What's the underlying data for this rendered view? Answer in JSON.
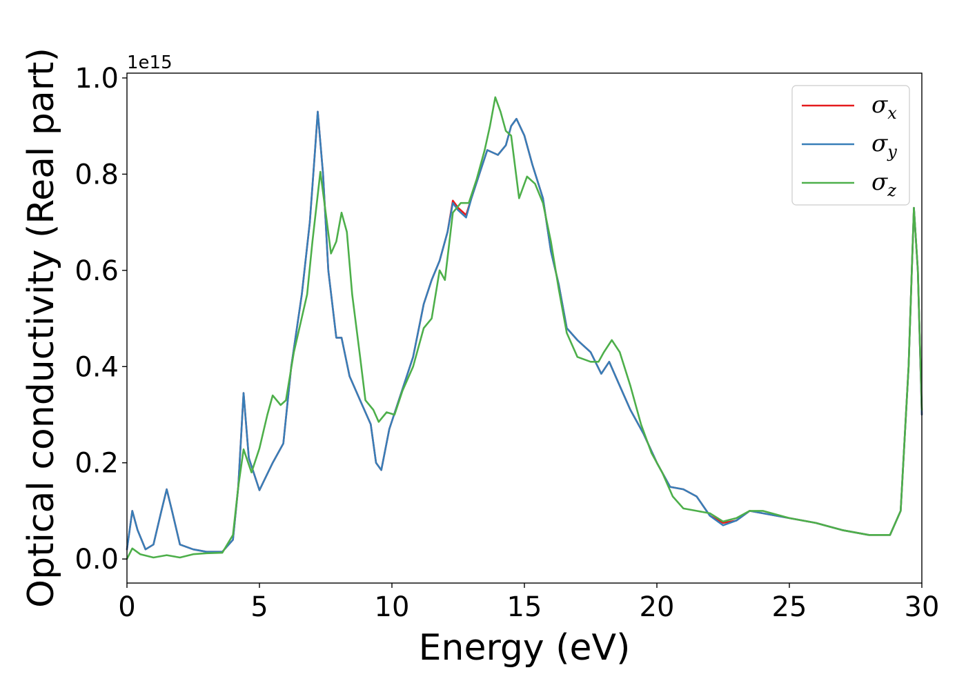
{
  "chart_data": {
    "type": "line",
    "xlabel": "Energy (eV)",
    "ylabel": "Optical conductivity (Real part)",
    "y_offset_label": "1e15",
    "xlim": [
      0,
      30
    ],
    "ylim": [
      -0.05,
      1.01
    ],
    "xticks": [
      0,
      5,
      10,
      15,
      20,
      25,
      30
    ],
    "xtick_labels": [
      "0",
      "5",
      "10",
      "15",
      "20",
      "25",
      "30"
    ],
    "yticks": [
      0.0,
      0.2,
      0.4,
      0.6,
      0.8,
      1.0
    ],
    "ytick_labels": [
      "0.0",
      "0.2",
      "0.4",
      "0.6",
      "0.8",
      "1.0"
    ],
    "grid": false,
    "legend_position": "top-right",
    "series": [
      {
        "name": "σ",
        "subscript": "x",
        "color": "#e41a1c",
        "points": [
          [
            0,
            0.02
          ],
          [
            0.2,
            0.1
          ],
          [
            0.4,
            0.06
          ],
          [
            0.7,
            0.02
          ],
          [
            1.0,
            0.03
          ],
          [
            1.3,
            0.1
          ],
          [
            1.5,
            0.145
          ],
          [
            1.7,
            0.1
          ],
          [
            2.0,
            0.03
          ],
          [
            2.5,
            0.02
          ],
          [
            3.0,
            0.015
          ],
          [
            3.6,
            0.015
          ],
          [
            4.0,
            0.04
          ],
          [
            4.2,
            0.15
          ],
          [
            4.4,
            0.345
          ],
          [
            4.6,
            0.21
          ],
          [
            5.0,
            0.143
          ],
          [
            5.5,
            0.2
          ],
          [
            5.9,
            0.24
          ],
          [
            6.2,
            0.4
          ],
          [
            6.6,
            0.55
          ],
          [
            6.9,
            0.7
          ],
          [
            7.1,
            0.85
          ],
          [
            7.2,
            0.93
          ],
          [
            7.4,
            0.8
          ],
          [
            7.6,
            0.6
          ],
          [
            7.9,
            0.46
          ],
          [
            8.1,
            0.46
          ],
          [
            8.4,
            0.38
          ],
          [
            8.8,
            0.33
          ],
          [
            9.2,
            0.28
          ],
          [
            9.4,
            0.2
          ],
          [
            9.6,
            0.185
          ],
          [
            9.9,
            0.27
          ],
          [
            10.2,
            0.32
          ],
          [
            10.5,
            0.37
          ],
          [
            10.8,
            0.42
          ],
          [
            11.2,
            0.53
          ],
          [
            11.5,
            0.58
          ],
          [
            11.8,
            0.62
          ],
          [
            12.1,
            0.68
          ],
          [
            12.3,
            0.745
          ],
          [
            12.5,
            0.73
          ],
          [
            12.8,
            0.715
          ],
          [
            13.0,
            0.75
          ],
          [
            13.3,
            0.8
          ],
          [
            13.6,
            0.85
          ],
          [
            14.0,
            0.84
          ],
          [
            14.3,
            0.86
          ],
          [
            14.5,
            0.9
          ],
          [
            14.7,
            0.915
          ],
          [
            15.0,
            0.88
          ],
          [
            15.3,
            0.82
          ],
          [
            15.7,
            0.75
          ],
          [
            16.0,
            0.64
          ],
          [
            16.3,
            0.57
          ],
          [
            16.6,
            0.48
          ],
          [
            17.0,
            0.455
          ],
          [
            17.5,
            0.43
          ],
          [
            17.9,
            0.385
          ],
          [
            18.2,
            0.41
          ],
          [
            18.6,
            0.36
          ],
          [
            19.0,
            0.31
          ],
          [
            19.5,
            0.26
          ],
          [
            20.0,
            0.2
          ],
          [
            20.5,
            0.15
          ],
          [
            21.0,
            0.145
          ],
          [
            21.5,
            0.13
          ],
          [
            22.0,
            0.09
          ],
          [
            22.5,
            0.075
          ],
          [
            23.0,
            0.08
          ],
          [
            23.5,
            0.1
          ],
          [
            24.0,
            0.095
          ],
          [
            25.0,
            0.085
          ],
          [
            26.0,
            0.075
          ],
          [
            27.0,
            0.06
          ],
          [
            28.0,
            0.05
          ],
          [
            28.8,
            0.05
          ],
          [
            29.2,
            0.1
          ],
          [
            29.5,
            0.4
          ],
          [
            29.7,
            0.73
          ],
          [
            29.85,
            0.6
          ],
          [
            30.0,
            0.3
          ]
        ]
      },
      {
        "name": "σ",
        "subscript": "y",
        "color": "#377eb8",
        "points": [
          [
            0,
            0.02
          ],
          [
            0.2,
            0.1
          ],
          [
            0.4,
            0.06
          ],
          [
            0.7,
            0.02
          ],
          [
            1.0,
            0.03
          ],
          [
            1.3,
            0.1
          ],
          [
            1.5,
            0.145
          ],
          [
            1.7,
            0.1
          ],
          [
            2.0,
            0.03
          ],
          [
            2.5,
            0.02
          ],
          [
            3.0,
            0.015
          ],
          [
            3.6,
            0.015
          ],
          [
            4.0,
            0.04
          ],
          [
            4.2,
            0.15
          ],
          [
            4.4,
            0.345
          ],
          [
            4.6,
            0.21
          ],
          [
            5.0,
            0.143
          ],
          [
            5.5,
            0.2
          ],
          [
            5.9,
            0.24
          ],
          [
            6.2,
            0.4
          ],
          [
            6.6,
            0.55
          ],
          [
            6.9,
            0.7
          ],
          [
            7.1,
            0.85
          ],
          [
            7.2,
            0.93
          ],
          [
            7.4,
            0.8
          ],
          [
            7.6,
            0.6
          ],
          [
            7.9,
            0.46
          ],
          [
            8.1,
            0.46
          ],
          [
            8.4,
            0.38
          ],
          [
            8.8,
            0.33
          ],
          [
            9.2,
            0.28
          ],
          [
            9.4,
            0.2
          ],
          [
            9.6,
            0.185
          ],
          [
            9.9,
            0.27
          ],
          [
            10.2,
            0.32
          ],
          [
            10.5,
            0.37
          ],
          [
            10.8,
            0.42
          ],
          [
            11.2,
            0.53
          ],
          [
            11.5,
            0.58
          ],
          [
            11.8,
            0.62
          ],
          [
            12.1,
            0.68
          ],
          [
            12.3,
            0.74
          ],
          [
            12.5,
            0.725
          ],
          [
            12.8,
            0.71
          ],
          [
            13.0,
            0.75
          ],
          [
            13.3,
            0.8
          ],
          [
            13.6,
            0.85
          ],
          [
            14.0,
            0.84
          ],
          [
            14.3,
            0.86
          ],
          [
            14.5,
            0.9
          ],
          [
            14.7,
            0.915
          ],
          [
            15.0,
            0.88
          ],
          [
            15.3,
            0.82
          ],
          [
            15.7,
            0.75
          ],
          [
            16.0,
            0.64
          ],
          [
            16.3,
            0.57
          ],
          [
            16.6,
            0.48
          ],
          [
            17.0,
            0.455
          ],
          [
            17.5,
            0.43
          ],
          [
            17.9,
            0.385
          ],
          [
            18.2,
            0.41
          ],
          [
            18.6,
            0.36
          ],
          [
            19.0,
            0.31
          ],
          [
            19.5,
            0.26
          ],
          [
            20.0,
            0.2
          ],
          [
            20.5,
            0.15
          ],
          [
            21.0,
            0.145
          ],
          [
            21.5,
            0.13
          ],
          [
            22.0,
            0.09
          ],
          [
            22.5,
            0.07
          ],
          [
            23.0,
            0.08
          ],
          [
            23.5,
            0.1
          ],
          [
            24.0,
            0.095
          ],
          [
            25.0,
            0.085
          ],
          [
            26.0,
            0.075
          ],
          [
            27.0,
            0.06
          ],
          [
            28.0,
            0.05
          ],
          [
            28.8,
            0.05
          ],
          [
            29.2,
            0.1
          ],
          [
            29.5,
            0.4
          ],
          [
            29.7,
            0.73
          ],
          [
            29.85,
            0.6
          ],
          [
            30.0,
            0.3
          ]
        ]
      },
      {
        "name": "σ",
        "subscript": "z",
        "color": "#4daf4a",
        "points": [
          [
            0,
            0.0
          ],
          [
            0.2,
            0.022
          ],
          [
            0.5,
            0.01
          ],
          [
            1.0,
            0.003
          ],
          [
            1.5,
            0.008
          ],
          [
            2.0,
            0.003
          ],
          [
            2.5,
            0.01
          ],
          [
            3.0,
            0.012
          ],
          [
            3.6,
            0.013
          ],
          [
            4.0,
            0.05
          ],
          [
            4.2,
            0.15
          ],
          [
            4.4,
            0.228
          ],
          [
            4.7,
            0.18
          ],
          [
            5.0,
            0.23
          ],
          [
            5.3,
            0.3
          ],
          [
            5.5,
            0.34
          ],
          [
            5.8,
            0.32
          ],
          [
            6.0,
            0.33
          ],
          [
            6.3,
            0.43
          ],
          [
            6.8,
            0.55
          ],
          [
            7.0,
            0.66
          ],
          [
            7.3,
            0.805
          ],
          [
            7.5,
            0.72
          ],
          [
            7.7,
            0.635
          ],
          [
            7.9,
            0.66
          ],
          [
            8.1,
            0.72
          ],
          [
            8.3,
            0.68
          ],
          [
            8.5,
            0.55
          ],
          [
            8.8,
            0.42
          ],
          [
            9.0,
            0.33
          ],
          [
            9.3,
            0.31
          ],
          [
            9.5,
            0.285
          ],
          [
            9.8,
            0.305
          ],
          [
            10.1,
            0.3
          ],
          [
            10.4,
            0.35
          ],
          [
            10.8,
            0.4
          ],
          [
            11.2,
            0.48
          ],
          [
            11.5,
            0.5
          ],
          [
            11.8,
            0.6
          ],
          [
            12.0,
            0.58
          ],
          [
            12.3,
            0.72
          ],
          [
            12.6,
            0.74
          ],
          [
            12.9,
            0.74
          ],
          [
            13.2,
            0.79
          ],
          [
            13.5,
            0.85
          ],
          [
            13.7,
            0.9
          ],
          [
            13.9,
            0.96
          ],
          [
            14.1,
            0.93
          ],
          [
            14.3,
            0.89
          ],
          [
            14.5,
            0.88
          ],
          [
            14.8,
            0.75
          ],
          [
            15.1,
            0.795
          ],
          [
            15.4,
            0.78
          ],
          [
            15.7,
            0.74
          ],
          [
            16.0,
            0.66
          ],
          [
            16.3,
            0.56
          ],
          [
            16.6,
            0.47
          ],
          [
            17.0,
            0.42
          ],
          [
            17.5,
            0.41
          ],
          [
            17.8,
            0.41
          ],
          [
            18.0,
            0.43
          ],
          [
            18.3,
            0.455
          ],
          [
            18.6,
            0.43
          ],
          [
            19.0,
            0.36
          ],
          [
            19.4,
            0.28
          ],
          [
            19.8,
            0.22
          ],
          [
            20.2,
            0.18
          ],
          [
            20.6,
            0.13
          ],
          [
            21.0,
            0.105
          ],
          [
            21.5,
            0.1
          ],
          [
            22.0,
            0.095
          ],
          [
            22.5,
            0.078
          ],
          [
            23.0,
            0.085
          ],
          [
            23.5,
            0.1
          ],
          [
            24.0,
            0.1
          ],
          [
            25.0,
            0.085
          ],
          [
            26.0,
            0.075
          ],
          [
            27.0,
            0.06
          ],
          [
            28.0,
            0.05
          ],
          [
            28.8,
            0.05
          ],
          [
            29.2,
            0.1
          ],
          [
            29.5,
            0.4
          ],
          [
            29.7,
            0.73
          ],
          [
            29.85,
            0.6
          ],
          [
            30.0,
            0.31
          ]
        ]
      }
    ]
  }
}
